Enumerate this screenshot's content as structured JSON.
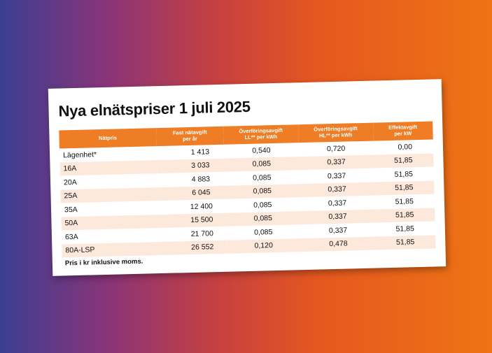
{
  "title": "Nya elnätspriser 1 juli 2025",
  "table": {
    "headers": [
      [
        "Nätpris"
      ],
      [
        "Fast nätavgift",
        "per år"
      ],
      [
        "Överföringsavgift",
        "LL** per kWh"
      ],
      [
        "Överföringsavgift",
        "HL** per kWh"
      ],
      [
        "Effektavgift",
        "per kW"
      ]
    ],
    "rows": [
      [
        "Lägenhet*",
        "1 413",
        "0,540",
        "0,720",
        "0,00"
      ],
      [
        "16A",
        "3 033",
        "0,085",
        "0,337",
        "51,85"
      ],
      [
        "20A",
        "4 883",
        "0,085",
        "0,337",
        "51,85"
      ],
      [
        "25A",
        "6 045",
        "0,085",
        "0,337",
        "51,85"
      ],
      [
        "35A",
        "12 400",
        "0,085",
        "0,337",
        "51,85"
      ],
      [
        "50A",
        "15 500",
        "0,085",
        "0,337",
        "51,85"
      ],
      [
        "63A",
        "21 700",
        "0,085",
        "0,337",
        "51,85"
      ],
      [
        "80A-LSP",
        "26 552",
        "0,120",
        "0,478",
        "51,85"
      ]
    ]
  },
  "footnote": "Pris i kr inklusive moms.",
  "colors": {
    "header_bg": "#ef7d25",
    "row_alt_bg": "#fde9dc",
    "background_gradient": [
      "#3a3f92",
      "#8a3478",
      "#c8413e",
      "#e5581f",
      "#ee7414"
    ]
  }
}
